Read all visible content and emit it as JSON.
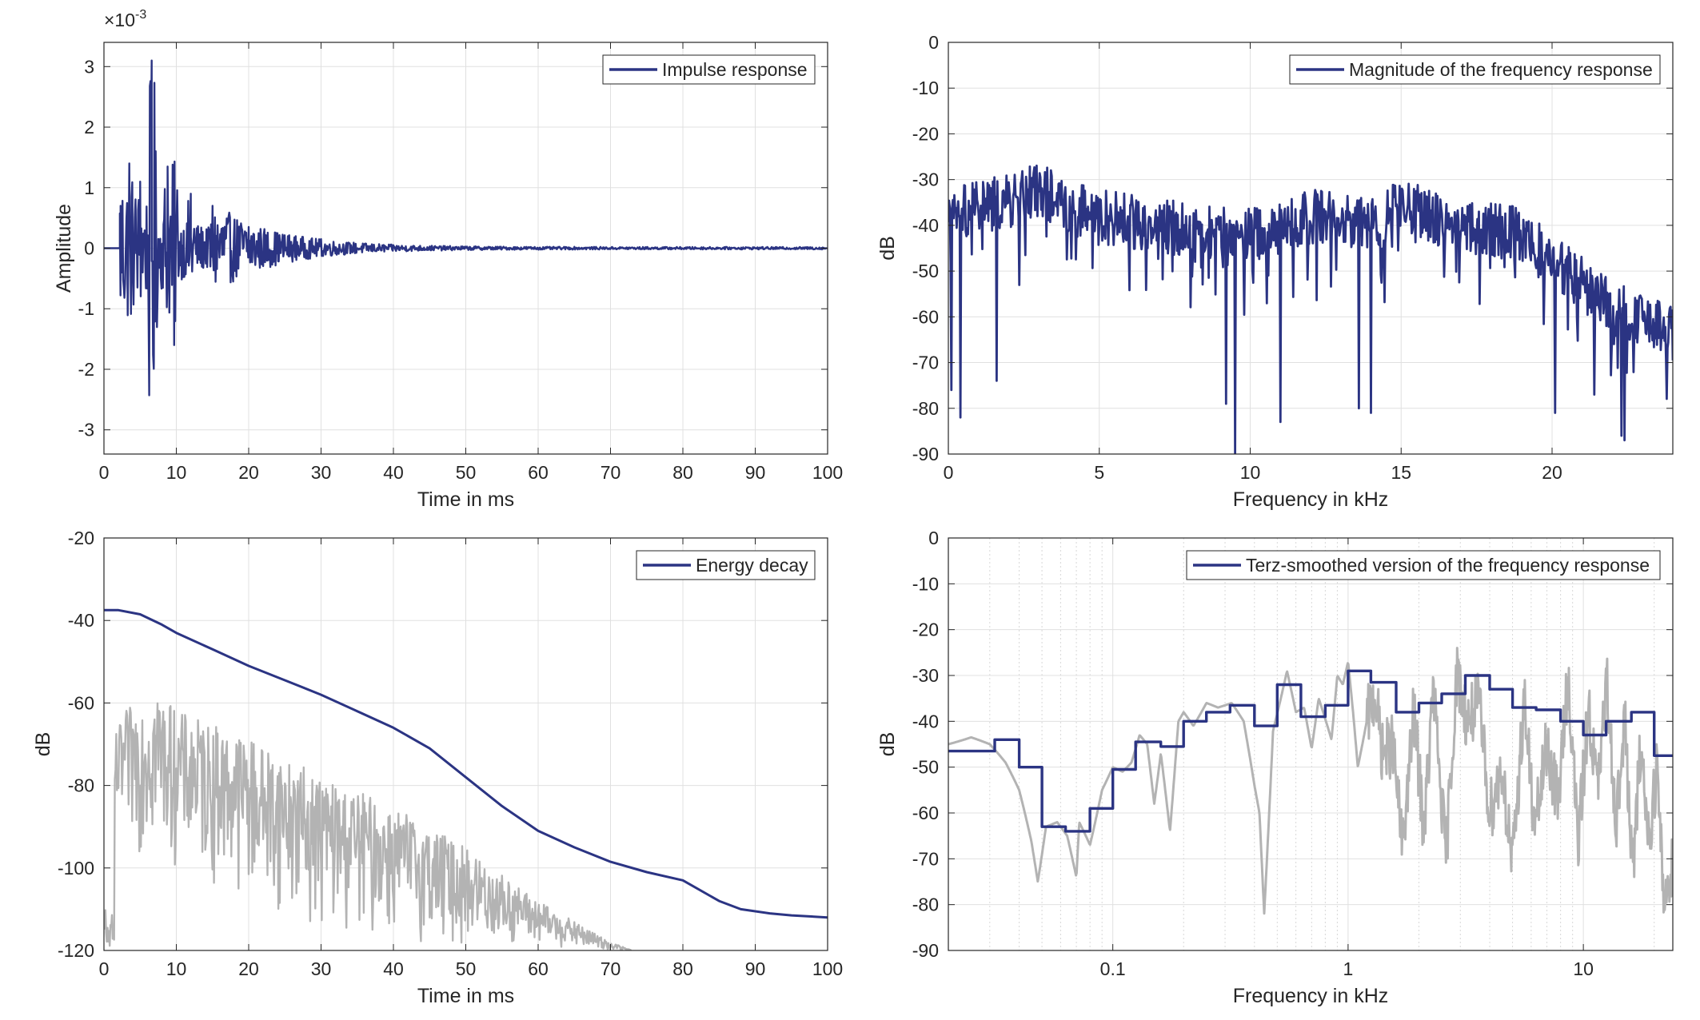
{
  "colors": {
    "primary": "#2b3483",
    "secondary": "#b3b3b3",
    "grid": "#e0e0e0",
    "axis": "#262626"
  },
  "chart_data": [
    {
      "id": "impulse",
      "type": "line",
      "xlabel": "Time in ms",
      "ylabel": "Amplitude",
      "xlim": [
        0,
        100
      ],
      "ylim": [
        -3.4,
        3.4
      ],
      "xticks": [
        0,
        10,
        20,
        30,
        40,
        50,
        60,
        70,
        80,
        90,
        100
      ],
      "yticks": [
        -3,
        -2,
        -1,
        0,
        1,
        2,
        3
      ],
      "exponent_label": "×10",
      "exponent_power": "-3",
      "grid": "on",
      "legend_position": "top-right",
      "series": [
        {
          "name": "Impulse response",
          "style": "primary",
          "envelope_note": "peak ~3.1e-3 at ~6.6 ms, decays to ~0 by ~50 ms",
          "peaks": [
            [
              2.3,
              0.7
            ],
            [
              3.5,
              1.4
            ],
            [
              5.0,
              1.1
            ],
            [
              6.6,
              3.1
            ],
            [
              6.9,
              -1.9
            ],
            [
              8.8,
              1.35
            ],
            [
              9.7,
              -1.6
            ],
            [
              12,
              0.9
            ],
            [
              15,
              0.7
            ],
            [
              20,
              0.35
            ],
            [
              30,
              0.15
            ],
            [
              40,
              0.05
            ],
            [
              50,
              0.02
            ]
          ]
        }
      ]
    },
    {
      "id": "magnitude",
      "type": "line",
      "xlabel": "Frequency in kHz",
      "ylabel": "dB",
      "xlim": [
        0,
        24
      ],
      "ylim": [
        -90,
        0
      ],
      "xticks": [
        0,
        5,
        10,
        15,
        20
      ],
      "yticks": [
        0,
        -10,
        -20,
        -30,
        -40,
        -50,
        -60,
        -70,
        -80,
        -90
      ],
      "grid": "on",
      "legend_position": "top-right",
      "series": [
        {
          "name": "Magnitude of the frequency response",
          "style": "primary",
          "envelope": [
            [
              0.0,
              -40
            ],
            [
              0.5,
              -37
            ],
            [
              1.0,
              -36
            ],
            [
              2.0,
              -35
            ],
            [
              3.0,
              -32
            ],
            [
              4.0,
              -36
            ],
            [
              5.0,
              -38
            ],
            [
              7.0,
              -40
            ],
            [
              9.0,
              -42
            ],
            [
              10.5,
              -42
            ],
            [
              12.0,
              -38
            ],
            [
              14.0,
              -40
            ],
            [
              15.0,
              -36
            ],
            [
              17.0,
              -40
            ],
            [
              19.0,
              -42
            ],
            [
              20.5,
              -50
            ],
            [
              22.0,
              -58
            ],
            [
              24.0,
              -64
            ]
          ],
          "dips": [
            [
              0.1,
              -76
            ],
            [
              0.4,
              -82
            ],
            [
              1.6,
              -74
            ],
            [
              9.2,
              -79
            ],
            [
              9.5,
              -90
            ],
            [
              11.0,
              -83
            ],
            [
              13.6,
              -80
            ],
            [
              14.0,
              -81
            ],
            [
              20.1,
              -81
            ],
            [
              21.4,
              -77
            ],
            [
              22.3,
              -86
            ],
            [
              22.4,
              -87
            ]
          ]
        }
      ]
    },
    {
      "id": "energy_decay",
      "type": "line",
      "xlabel": "Time in ms",
      "ylabel": "dB",
      "xlim": [
        0,
        100
      ],
      "ylim": [
        -120,
        -20
      ],
      "xticks": [
        0,
        10,
        20,
        30,
        40,
        50,
        60,
        70,
        80,
        90,
        100
      ],
      "yticks": [
        -20,
        -40,
        -60,
        -80,
        -100,
        -120
      ],
      "grid": "on",
      "legend_position": "top-right",
      "series": [
        {
          "name": "Energy decay",
          "style": "primary",
          "x": [
            0,
            2,
            5,
            8,
            10,
            15,
            20,
            25,
            30,
            35,
            40,
            45,
            50,
            55,
            60,
            65,
            70,
            75,
            80,
            85,
            88,
            92,
            95,
            100
          ],
          "y": [
            -37.5,
            -37.5,
            -38.5,
            -41,
            -43,
            -47,
            -51,
            -54.5,
            -58,
            -62,
            -66,
            -71,
            -78,
            -85,
            -91,
            -95,
            -98.5,
            -101,
            -103,
            -108,
            -110,
            -111,
            -111.5,
            -112
          ]
        },
        {
          "name": "",
          "style": "secondary",
          "envelope_upper": [
            [
              1.5,
              -68
            ],
            [
              3,
              -62
            ],
            [
              7,
              -55
            ],
            [
              10,
              -62
            ],
            [
              20,
              -68
            ],
            [
              30,
              -78
            ],
            [
              40,
              -85
            ],
            [
              50,
              -95
            ],
            [
              60,
              -108
            ],
            [
              70,
              -118
            ],
            [
              73,
              -120
            ]
          ],
          "envelope_lower": [
            [
              2,
              -95
            ],
            [
              10,
              -100
            ],
            [
              20,
              -108
            ],
            [
              30,
              -115
            ],
            [
              40,
              -118
            ],
            [
              50,
              -120
            ]
          ]
        }
      ]
    },
    {
      "id": "terz",
      "type": "line",
      "xscale": "log",
      "xlabel": "Frequency in kHz",
      "ylabel": "dB",
      "xlim": [
        0.02,
        24
      ],
      "ylim": [
        -90,
        0
      ],
      "xtick_values": [
        0.1,
        1,
        10
      ],
      "xticks": [
        "0.1",
        "1",
        "10"
      ],
      "yticks": [
        0,
        -10,
        -20,
        -30,
        -40,
        -50,
        -60,
        -70,
        -80,
        -90
      ],
      "grid": "on",
      "legend_position": "top-right",
      "series": [
        {
          "name": "Terz-smoothed version of the frequency response",
          "style": "primary",
          "x": [
            0.02,
            0.025,
            0.0315,
            0.04,
            0.05,
            0.063,
            0.08,
            0.1,
            0.125,
            0.16,
            0.2,
            0.25,
            0.315,
            0.4,
            0.5,
            0.63,
            0.8,
            1.0,
            1.25,
            1.6,
            2.0,
            2.5,
            3.15,
            4.0,
            5.0,
            6.3,
            8.0,
            10.0,
            12.5,
            16.0,
            20.0,
            24.0
          ],
          "y": [
            -46.5,
            -46.5,
            -44,
            -50,
            -63,
            -64,
            -59,
            -50.5,
            -44.5,
            -45.5,
            -40,
            -38,
            -36.5,
            -41,
            -32,
            -39,
            -36.5,
            -29,
            -31.5,
            -38,
            -36,
            -34,
            -30,
            -33,
            -37,
            -37.5,
            -40,
            -43,
            -40,
            -38,
            -47.5,
            -47.5
          ]
        },
        {
          "name": "",
          "style": "secondary",
          "x": [
            0.02,
            0.025,
            0.03,
            0.035,
            0.04,
            0.045,
            0.048,
            0.052,
            0.058,
            0.064,
            0.07,
            0.072,
            0.08,
            0.09,
            0.1,
            0.11,
            0.12,
            0.13,
            0.14,
            0.15,
            0.16,
            0.175,
            0.19,
            0.2,
            0.22,
            0.25,
            0.28,
            0.32,
            0.36,
            0.4,
            0.42,
            0.44,
            0.48,
            0.55,
            0.6,
            0.65,
            0.7,
            0.75,
            0.85,
            0.9,
            0.95,
            1.0,
            1.05,
            1.1,
            1.2,
            1.3,
            1.4,
            1.55,
            1.7,
            1.9,
            2.1,
            2.3,
            2.6,
            2.9,
            3.2,
            3.6,
            4.0,
            4.5,
            5.0,
            5.6,
            6.2,
            7.0,
            7.8,
            8.6,
            9.5,
            10.5,
            11.5,
            12.6,
            13.8,
            15.0,
            16.2,
            17.5,
            19.0,
            20.5,
            22.0,
            24.0
          ],
          "y": [
            -45,
            -43.5,
            -45,
            -49,
            -55,
            -66,
            -75,
            -63,
            -62,
            -65,
            -74,
            -62,
            -67,
            -55,
            -50,
            -51,
            -49,
            -43,
            -45,
            -58,
            -47,
            -64,
            -40,
            -38,
            -41,
            -36,
            -37,
            -36,
            -40,
            -54,
            -60,
            -82,
            -42,
            -29,
            -38,
            -37,
            -46,
            -35,
            -44,
            -30,
            -32,
            -27,
            -38,
            -50,
            -40,
            -34,
            -47,
            -45,
            -68,
            -38,
            -64,
            -33,
            -70,
            -29,
            -40,
            -36,
            -60,
            -50,
            -72,
            -35,
            -64,
            -45,
            -58,
            -30,
            -67,
            -37,
            -55,
            -32,
            -62,
            -40,
            -74,
            -45,
            -66,
            -50,
            -80,
            -70
          ]
        }
      ]
    }
  ]
}
